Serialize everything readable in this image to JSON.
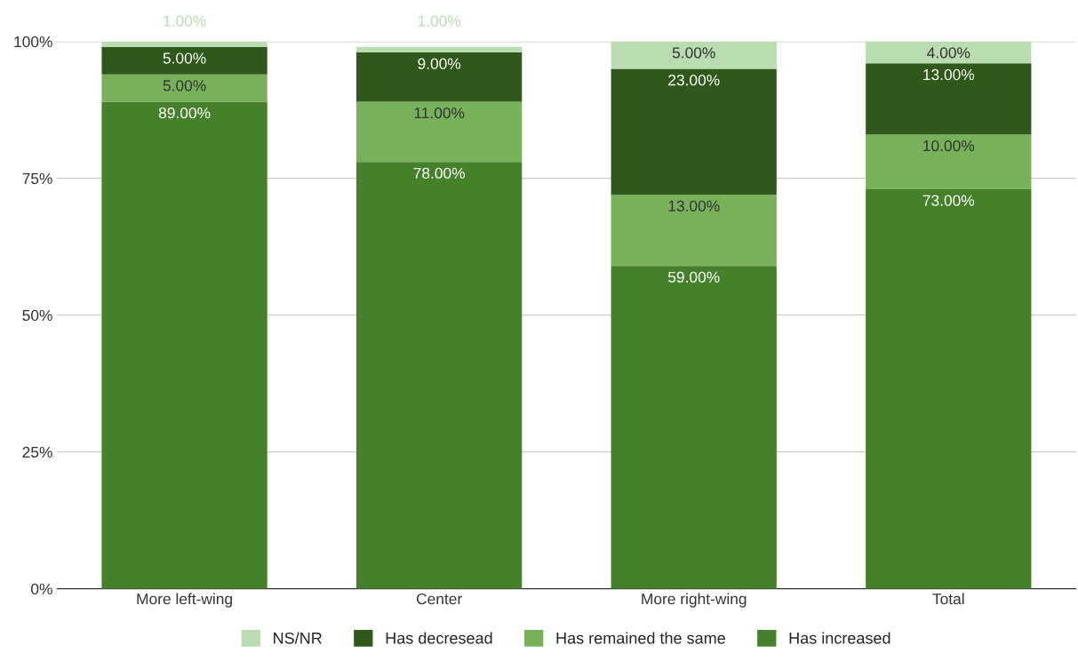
{
  "chart_data": {
    "type": "bar",
    "stacked": true,
    "categories": [
      "More left-wing",
      "Center",
      "More right-wing",
      "Total"
    ],
    "series": [
      {
        "name": "Has increased",
        "color": "#45812a",
        "values": [
          89,
          78,
          59,
          73
        ],
        "value_labels": [
          "89.00%",
          "78.00%",
          "59.00%",
          "73.00%"
        ]
      },
      {
        "name": "Has remained the same",
        "color": "#77b25b",
        "values": [
          5,
          11,
          13,
          10
        ],
        "value_labels": [
          "5.00%",
          "11.00%",
          "13.00%",
          "10.00%"
        ]
      },
      {
        "name": "Has decresead",
        "color": "#30581b",
        "values": [
          5,
          9,
          23,
          13
        ],
        "value_labels": [
          "5.00%",
          "9.00%",
          "23.00%",
          "13.00%"
        ]
      },
      {
        "name": "NS/NR",
        "color": "#b9ddb1",
        "values": [
          1,
          1,
          5,
          4
        ],
        "value_labels": [
          "1.00%",
          "1.00%",
          "5.00%",
          "4.00%"
        ]
      }
    ],
    "ylim": [
      0,
      100
    ],
    "yticks": [
      {
        "value": 0,
        "label": "0%"
      },
      {
        "value": 25,
        "label": "25%"
      },
      {
        "value": 50,
        "label": "50%"
      },
      {
        "value": 75,
        "label": "75%"
      },
      {
        "value": 100,
        "label": "100%"
      }
    ],
    "grid": "y",
    "legend": "bottom"
  }
}
